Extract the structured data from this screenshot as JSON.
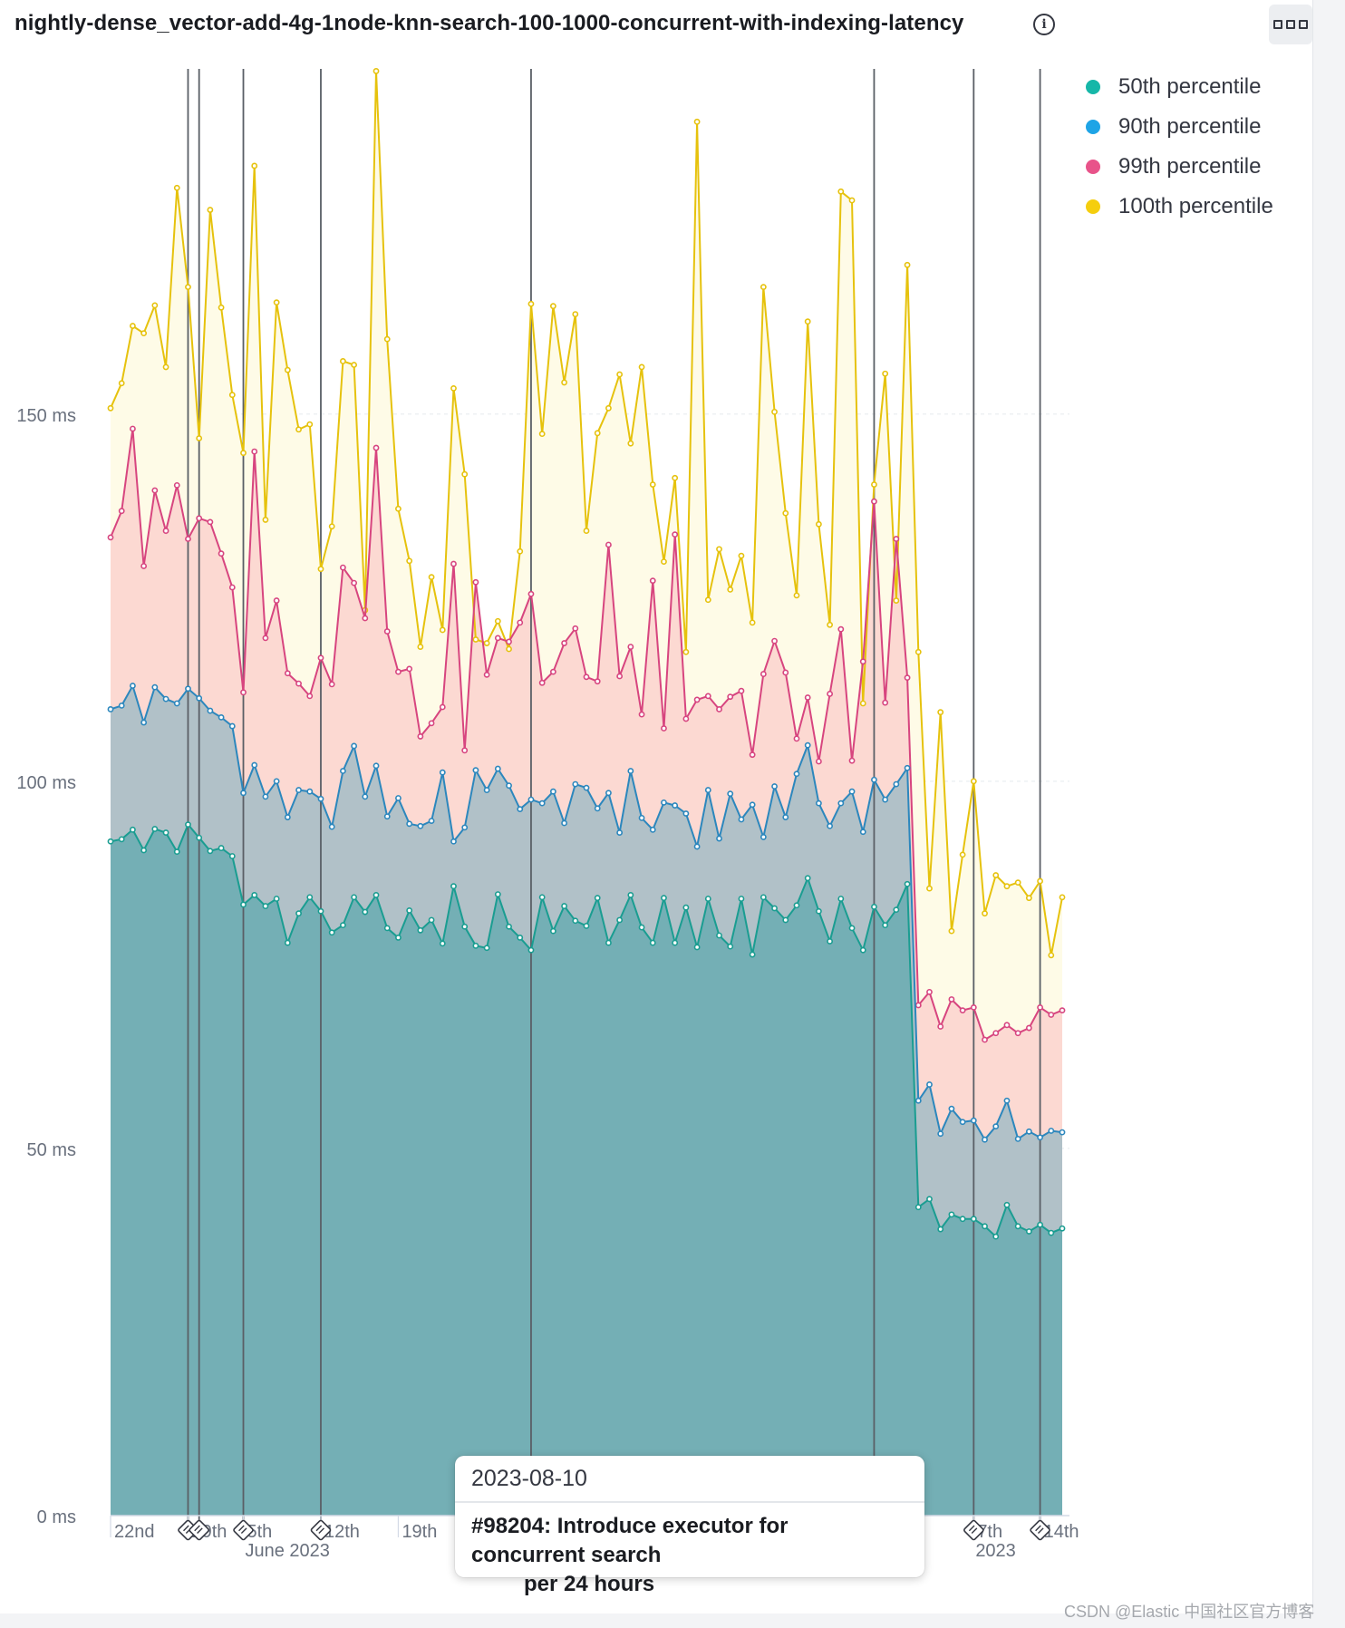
{
  "panel": {
    "title": "nightly-dense_vector-add-4g-1node-knn-search-100-1000-concurrent-with-indexing-latency",
    "info_icon": "info-icon",
    "menu_icon": "ellipsis-icon"
  },
  "chart_data": {
    "type": "area",
    "title": "nightly-dense_vector-add-4g-1node-knn-search-100-1000-concurrent-with-indexing-latency",
    "ylabel": "",
    "xlabel": "per 24 hours",
    "ylim": [
      0,
      197
    ],
    "y_ticks": [
      "0 ms",
      "50 ms",
      "100 ms",
      "150 ms"
    ],
    "y_tick_values": [
      0,
      50,
      100,
      150
    ],
    "x_tick_labels": [
      "22nd",
      "29th",
      "5th",
      "12th",
      "19th",
      "7th",
      "14th"
    ],
    "x_tick_index": [
      0,
      7,
      12,
      19,
      26,
      78,
      84
    ],
    "x_secondary_labels": [
      "June 2023",
      "2023"
    ],
    "x_secondary_index": [
      12,
      78
    ],
    "legend": [
      "50th percentile",
      "90th percentile",
      "99th percentile",
      "100th percentile"
    ],
    "legend_position": "top-right",
    "colors": [
      "#16b7a8",
      "#1ea4e6",
      "#e8538a",
      "#f5ce0e"
    ],
    "area_fills": [
      "#74afb5",
      "#b1c1c8",
      "#fcd9d2",
      "#fefbe7"
    ],
    "annotation_index": [
      7,
      8,
      12,
      19,
      38,
      69,
      78,
      84
    ],
    "series": [
      {
        "name": "50th percentile",
        "values": [
          91.8,
          92.1,
          93.4,
          90.6,
          93.5,
          93.0,
          90.4,
          94.1,
          92.3,
          90.5,
          90.9,
          89.8,
          83.2,
          84.5,
          83.0,
          84.0,
          78.0,
          82.0,
          84.2,
          82.3,
          79.4,
          80.4,
          84.2,
          82.2,
          84.5,
          80.0,
          78.7,
          82.4,
          79.7,
          81.1,
          77.9,
          85.7,
          80.2,
          77.6,
          77.3,
          84.6,
          80.2,
          78.7,
          77.0,
          84.2,
          79.6,
          83.0,
          81.0,
          80.3,
          84.1,
          78.0,
          81.1,
          84.5,
          80.1,
          78.0,
          84.1,
          78.0,
          82.8,
          77.4,
          84.0,
          79.0,
          77.5,
          84.0,
          76.4,
          84.2,
          82.7,
          81.1,
          83.1,
          86.8,
          82.3,
          78.2,
          84.0,
          80.0,
          77.0,
          82.9,
          80.4,
          82.5,
          86.0,
          42.0,
          43.1,
          39.0,
          41.0,
          40.4,
          40.4,
          39.4,
          38.0,
          42.3,
          39.4,
          38.7,
          39.6,
          38.5,
          39.1
        ]
      },
      {
        "name": "90th percentile",
        "values": [
          109.8,
          110.3,
          113.0,
          108.0,
          112.8,
          111.2,
          110.6,
          112.6,
          111.3,
          109.6,
          108.7,
          107.5,
          98.4,
          102.2,
          97.9,
          100.0,
          95.1,
          98.8,
          98.6,
          97.6,
          93.8,
          101.4,
          104.8,
          97.9,
          102.1,
          95.2,
          97.7,
          94.2,
          93.9,
          94.6,
          101.2,
          91.8,
          93.7,
          101.5,
          98.8,
          101.7,
          99.4,
          96.2,
          97.5,
          97.0,
          98.6,
          94.3,
          99.6,
          99.1,
          96.3,
          98.4,
          93.0,
          101.4,
          95.0,
          93.4,
          97.1,
          96.7,
          95.6,
          91.1,
          98.8,
          92.2,
          98.3,
          94.8,
          96.8,
          92.4,
          99.3,
          95.1,
          101.0,
          104.9,
          97.0,
          93.9,
          97.0,
          98.6,
          93.1,
          100.2,
          97.5,
          99.6,
          101.8,
          56.5,
          58.7,
          52.0,
          55.4,
          53.6,
          53.8,
          51.2,
          53.0,
          56.5,
          51.3,
          52.3,
          51.5,
          52.4,
          52.2
        ]
      },
      {
        "name": "99th percentile",
        "values": [
          133.2,
          136.8,
          148.0,
          129.3,
          139.6,
          134.1,
          140.3,
          133.0,
          135.8,
          135.3,
          131.0,
          126.4,
          112.1,
          144.9,
          119.5,
          124.6,
          114.7,
          113.3,
          111.6,
          116.8,
          113.2,
          129.1,
          127.0,
          122.2,
          145.4,
          120.4,
          114.9,
          115.3,
          106.1,
          107.9,
          110.1,
          129.6,
          104.2,
          127.1,
          114.5,
          119.5,
          119.0,
          121.6,
          125.5,
          113.4,
          114.9,
          118.8,
          120.8,
          114.2,
          113.6,
          132.2,
          114.3,
          118.3,
          109.1,
          127.3,
          107.2,
          133.6,
          108.5,
          111.1,
          111.6,
          109.8,
          111.5,
          112.3,
          103.6,
          114.6,
          119.1,
          114.8,
          105.8,
          111.4,
          102.7,
          111.9,
          120.7,
          102.8,
          116.3,
          138.1,
          110.7,
          133.0,
          114.1,
          69.5,
          71.3,
          66.6,
          70.3,
          68.8,
          69.2,
          64.8,
          65.7,
          66.8,
          65.7,
          66.4,
          69.2,
          68.2,
          68.8
        ]
      },
      {
        "name": "100th percentile",
        "values": [
          150.8,
          154.2,
          162.0,
          161.0,
          164.8,
          156.4,
          180.8,
          167.3,
          146.7,
          177.8,
          164.5,
          152.6,
          144.7,
          183.8,
          135.6,
          165.2,
          156.0,
          147.9,
          148.6,
          128.9,
          134.7,
          157.2,
          156.7,
          123.3,
          196.7,
          160.2,
          137.1,
          130.0,
          118.3,
          127.8,
          120.6,
          153.5,
          141.8,
          119.3,
          118.8,
          121.8,
          118.0,
          131.3,
          165.0,
          147.3,
          164.7,
          154.3,
          163.6,
          134.1,
          147.4,
          150.8,
          155.4,
          146.0,
          156.4,
          140.4,
          129.9,
          141.3,
          117.6,
          189.8,
          124.7,
          131.6,
          126.1,
          130.7,
          121.6,
          167.3,
          150.3,
          136.5,
          125.3,
          162.6,
          135.0,
          121.3,
          180.3,
          179.1,
          110.6,
          140.4,
          155.5,
          124.6,
          170.3,
          117.6,
          85.4,
          109.4,
          79.6,
          90.0,
          100.0,
          82.0,
          87.2,
          85.7,
          86.2,
          84.1,
          86.4,
          76.3,
          84.2
        ]
      }
    ]
  },
  "tooltip": {
    "date": "2023-08-10",
    "text": "#98204: Introduce executor for concurrent search"
  },
  "footer": {
    "interval_label": "per 24 hours",
    "watermark": "CSDN @Elastic 中国社区官方博客"
  }
}
